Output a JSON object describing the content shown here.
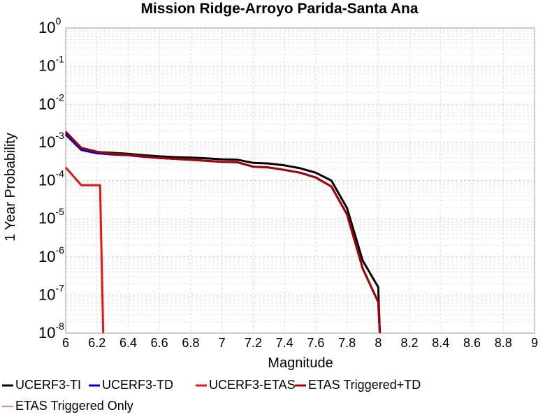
{
  "chart_data": {
    "type": "line",
    "title": "Mission Ridge-Arroyo Parida-Santa Ana",
    "xlabel": "Magnitude",
    "ylabel": "1 Year Probability",
    "xlim": [
      6,
      9
    ],
    "ylim": [
      1e-08,
      1
    ],
    "yscale": "log",
    "grid": true,
    "legend_position": "bottom",
    "x_ticks": [
      "6",
      "6.2",
      "6.4",
      "6.6",
      "6.8",
      "7",
      "7.2",
      "7.4",
      "7.6",
      "7.8",
      "8",
      "8.2",
      "8.4",
      "8.6",
      "8.8",
      "9"
    ],
    "y_ticks": [
      {
        "base": "10",
        "exp": "0"
      },
      {
        "base": "10",
        "exp": "-1"
      },
      {
        "base": "10",
        "exp": "-2"
      },
      {
        "base": "10",
        "exp": "-3"
      },
      {
        "base": "10",
        "exp": "-4"
      },
      {
        "base": "10",
        "exp": "-5"
      },
      {
        "base": "10",
        "exp": "-6"
      },
      {
        "base": "10",
        "exp": "-7"
      },
      {
        "base": "10",
        "exp": "-8"
      }
    ],
    "series": [
      {
        "name": "UCERF3-TI",
        "color": "#000000",
        "x": [
          6.0,
          6.1,
          6.2,
          6.3,
          6.4,
          6.5,
          6.6,
          6.7,
          6.8,
          6.9,
          7.0,
          7.1,
          7.2,
          7.3,
          7.4,
          7.5,
          7.6,
          7.7,
          7.8,
          7.9,
          8.0,
          8.01
        ],
        "y": [
          0.0017,
          0.00068,
          0.00056,
          0.00053,
          0.0005,
          0.00046,
          0.00043,
          0.00041,
          0.0004,
          0.00038,
          0.00036,
          0.00035,
          0.00029,
          0.00028,
          0.00025,
          0.00021,
          0.00016,
          0.0001,
          1.9e-05,
          8e-07,
          1.6e-07,
          1e-08
        ]
      },
      {
        "name": "UCERF3-TD",
        "color": "#0000cc",
        "x": [
          6.0,
          6.1,
          6.2,
          6.3,
          6.4,
          6.5,
          6.6,
          6.7,
          6.8,
          6.9,
          7.0,
          7.1,
          7.2,
          7.3,
          7.4,
          7.5,
          7.6,
          7.7,
          7.8,
          7.9,
          8.0,
          8.01
        ],
        "y": [
          0.0016,
          0.00063,
          0.00052,
          0.00048,
          0.00046,
          0.00042,
          0.00039,
          0.00037,
          0.00035,
          0.00033,
          0.00031,
          0.0003,
          0.00023,
          0.00022,
          0.00019,
          0.00016,
          0.00012,
          7e-05,
          1.3e-05,
          5e-07,
          6.5e-08,
          1e-08
        ]
      },
      {
        "name": "UCERF3-ETAS",
        "color": "#ee1111",
        "x": [
          6.0,
          6.1,
          6.2,
          6.22,
          6.24
        ],
        "y": [
          0.00022,
          7.5e-05,
          7.5e-05,
          7.5e-05,
          1e-08
        ]
      },
      {
        "name": "ETAS Triggered+TD",
        "color": "#aa0000",
        "x": [
          6.0,
          6.1,
          6.2,
          6.3,
          6.4,
          6.5,
          6.6,
          6.7,
          6.8,
          6.9,
          7.0,
          7.1,
          7.2,
          7.3,
          7.4,
          7.5,
          7.6,
          7.7,
          7.8,
          7.9,
          8.0,
          8.01
        ],
        "y": [
          0.0019,
          0.00072,
          0.00057,
          0.0005,
          0.00047,
          0.00043,
          0.00039,
          0.00037,
          0.00035,
          0.00033,
          0.00031,
          0.0003,
          0.00023,
          0.00022,
          0.00019,
          0.00016,
          0.00012,
          7e-05,
          1.3e-05,
          5e-07,
          6.5e-08,
          1e-08
        ]
      },
      {
        "name": "ETAS Triggered Only",
        "color": "#f08080",
        "x": [],
        "y": []
      }
    ]
  }
}
